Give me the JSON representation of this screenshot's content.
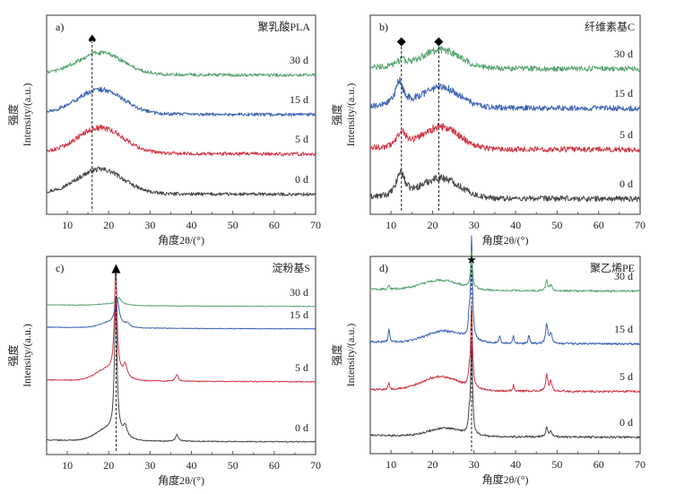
{
  "chart_data": [
    {
      "id": "a",
      "type": "line",
      "panel_label": "a)",
      "title": "聚乳酸PLA",
      "xlabel": "角度2θ/(°)",
      "ylabel_cn": "强度",
      "ylabel": "Intensity/(a.u.)",
      "xlim": [
        5,
        70
      ],
      "xticks": [
        10,
        20,
        30,
        40,
        50,
        60,
        70
      ],
      "marker": {
        "symbol": "♠",
        "positions": [
          16
        ]
      },
      "series": [
        {
          "name": "0 d",
          "color": "#474747",
          "baseline_rank": 0,
          "peaks": [
            {
              "x": 18,
              "h": 0.9,
              "w": 5.5,
              "type": "broad"
            }
          ],
          "noise": 0.12
        },
        {
          "name": "5 d",
          "color": "#d03848",
          "baseline_rank": 1,
          "peaks": [
            {
              "x": 18,
              "h": 0.95,
              "w": 5.5,
              "type": "broad"
            }
          ],
          "noise": 0.13
        },
        {
          "name": "15 d",
          "color": "#3d63b3",
          "baseline_rank": 2,
          "peaks": [
            {
              "x": 18,
              "h": 0.9,
              "w": 5.5,
              "type": "broad"
            }
          ],
          "noise": 0.12
        },
        {
          "name": "30 d",
          "color": "#5aa473",
          "baseline_rank": 3,
          "peaks": [
            {
              "x": 18,
              "h": 0.8,
              "w": 5.5,
              "type": "broad"
            }
          ],
          "noise": 0.12
        }
      ]
    },
    {
      "id": "b",
      "type": "line",
      "panel_label": "b)",
      "title": "纤维素基C",
      "xlabel": "角度2θ/(°)",
      "ylabel_cn": "强度",
      "ylabel": "Intensity/(a.u.)",
      "xlim": [
        5,
        70
      ],
      "xticks": [
        10,
        20,
        30,
        40,
        50,
        60,
        70
      ],
      "marker": {
        "symbol": "◆",
        "positions": [
          12.5,
          21.5
        ]
      },
      "series": [
        {
          "name": "0 d",
          "color": "#474747",
          "baseline_rank": 0,
          "peaks": [
            {
              "x": 12.3,
              "h": 0.8,
              "w": 1.2,
              "type": "sharp"
            },
            {
              "x": 22,
              "h": 0.65,
              "w": 4.5,
              "type": "broad"
            }
          ],
          "noise": 0.18
        },
        {
          "name": "5 d",
          "color": "#d03848",
          "baseline_rank": 1,
          "peaks": [
            {
              "x": 12.5,
              "h": 0.55,
              "w": 1.2,
              "type": "sharp"
            },
            {
              "x": 22,
              "h": 0.7,
              "w": 4.5,
              "type": "broad"
            }
          ],
          "noise": 0.18
        },
        {
          "name": "15 d",
          "color": "#3d63b3",
          "baseline_rank": 2,
          "peaks": [
            {
              "x": 12,
              "h": 0.8,
              "w": 1.2,
              "type": "sharp"
            },
            {
              "x": 22,
              "h": 0.65,
              "w": 4.5,
              "type": "broad"
            }
          ],
          "noise": 0.18
        },
        {
          "name": "30 d",
          "color": "#5aa473",
          "baseline_rank": 3,
          "peaks": [
            {
              "x": 12.5,
              "h": 0.2,
              "w": 1.5,
              "type": "sharp"
            },
            {
              "x": 22,
              "h": 0.6,
              "w": 4.5,
              "type": "broad"
            }
          ],
          "noise": 0.18
        }
      ]
    },
    {
      "id": "c",
      "type": "line",
      "panel_label": "c)",
      "title": "淀粉基S",
      "xlabel": "角度2θ/(°)",
      "ylabel_cn": "强度",
      "ylabel": "Intensity/(a.u.)",
      "xlim": [
        5,
        70
      ],
      "xticks": [
        10,
        20,
        30,
        40,
        50,
        60,
        70
      ],
      "marker": {
        "symbol": "▲",
        "positions": [
          21.8
        ]
      },
      "series": [
        {
          "name": "0 d",
          "color": "#474747",
          "baseline_rank": 0,
          "peaks": [
            {
              "x": 21.7,
              "h": 4.2,
              "w": 0.35,
              "type": "sharp"
            },
            {
              "x": 20,
              "h": 0.35,
              "w": 3,
              "type": "broad"
            },
            {
              "x": 24,
              "h": 0.3,
              "w": 0.5,
              "type": "sharp"
            },
            {
              "x": 36.5,
              "h": 0.2,
              "w": 0.4,
              "type": "sharp"
            }
          ],
          "noise": 0.03
        },
        {
          "name": "5 d",
          "color": "#d03848",
          "baseline_rank": 1,
          "peaks": [
            {
              "x": 21.7,
              "h": 3.3,
              "w": 0.35,
              "type": "sharp"
            },
            {
              "x": 20,
              "h": 0.35,
              "w": 3,
              "type": "broad"
            },
            {
              "x": 24,
              "h": 0.35,
              "w": 0.5,
              "type": "sharp"
            },
            {
              "x": 36.5,
              "h": 0.2,
              "w": 0.4,
              "type": "sharp"
            }
          ],
          "noise": 0.03
        },
        {
          "name": "15 d",
          "color": "#3d63b3",
          "baseline_rank": 2,
          "peaks": [
            {
              "x": 22,
              "h": 0.8,
              "w": 0.6,
              "type": "sharp"
            },
            {
              "x": 20.5,
              "h": 0.15,
              "w": 2.5,
              "type": "broad"
            },
            {
              "x": 24.5,
              "h": 0.1,
              "w": 0.6,
              "type": "sharp"
            }
          ],
          "noise": 0.02
        },
        {
          "name": "30 d",
          "color": "#5aa473",
          "baseline_rank": 3,
          "peaks": [
            {
              "x": 22.5,
              "h": 0.2,
              "w": 0.6,
              "type": "sharp"
            },
            {
              "x": 21,
              "h": 0.05,
              "w": 3,
              "type": "broad"
            }
          ],
          "noise": 0.02
        }
      ]
    },
    {
      "id": "d",
      "type": "line",
      "panel_label": "d)",
      "title": "聚乙烯PE",
      "xlabel": "角度2θ/(°)",
      "ylabel_cn": "强度",
      "ylabel": "Intensity/(a.u.)",
      "xlim": [
        5,
        70
      ],
      "xticks": [
        10,
        20,
        30,
        40,
        50,
        60,
        70
      ],
      "marker": {
        "symbol": "★",
        "positions": [
          29.4
        ]
      },
      "series": [
        {
          "name": "0 d",
          "color": "#474747",
          "baseline_rank": 0,
          "peaks": [
            {
              "x": 29.4,
              "h": 2.4,
              "w": 0.25,
              "type": "sharp"
            },
            {
              "x": 28.8,
              "h": 0.4,
              "w": 0.2,
              "type": "sharp"
            },
            {
              "x": 23,
              "h": 0.2,
              "w": 4,
              "type": "broad"
            },
            {
              "x": 47.5,
              "h": 0.25,
              "w": 0.3,
              "type": "sharp"
            },
            {
              "x": 48.5,
              "h": 0.15,
              "w": 0.3,
              "type": "sharp"
            }
          ],
          "noise": 0.05
        },
        {
          "name": "5 d",
          "color": "#d03848",
          "baseline_rank": 1,
          "peaks": [
            {
              "x": 29.4,
              "h": 2.1,
              "w": 0.25,
              "type": "sharp"
            },
            {
              "x": 28.8,
              "h": 0.3,
              "w": 0.2,
              "type": "sharp"
            },
            {
              "x": 22,
              "h": 0.35,
              "w": 4.5,
              "type": "broad"
            },
            {
              "x": 9.5,
              "h": 0.2,
              "w": 0.2,
              "type": "sharp"
            },
            {
              "x": 39.5,
              "h": 0.15,
              "w": 0.2,
              "type": "sharp"
            },
            {
              "x": 47.5,
              "h": 0.4,
              "w": 0.3,
              "type": "sharp"
            },
            {
              "x": 48.5,
              "h": 0.25,
              "w": 0.3,
              "type": "sharp"
            }
          ],
          "noise": 0.05
        },
        {
          "name": "15 d",
          "color": "#3d63b3",
          "baseline_rank": 2,
          "peaks": [
            {
              "x": 29.4,
              "h": 2.6,
              "w": 0.25,
              "type": "sharp"
            },
            {
              "x": 28.8,
              "h": 0.5,
              "w": 0.2,
              "type": "sharp"
            },
            {
              "x": 23,
              "h": 0.3,
              "w": 4.5,
              "type": "broad"
            },
            {
              "x": 9.5,
              "h": 0.35,
              "w": 0.2,
              "type": "sharp"
            },
            {
              "x": 36.2,
              "h": 0.2,
              "w": 0.2,
              "type": "sharp"
            },
            {
              "x": 39.5,
              "h": 0.2,
              "w": 0.2,
              "type": "sharp"
            },
            {
              "x": 43.2,
              "h": 0.2,
              "w": 0.2,
              "type": "sharp"
            },
            {
              "x": 47.5,
              "h": 0.5,
              "w": 0.3,
              "type": "sharp"
            },
            {
              "x": 48.5,
              "h": 0.25,
              "w": 0.3,
              "type": "sharp"
            }
          ],
          "noise": 0.05
        },
        {
          "name": "30 d",
          "color": "#5aa473",
          "baseline_rank": 3,
          "peaks": [
            {
              "x": 29.4,
              "h": 1.0,
              "w": 0.25,
              "type": "sharp"
            },
            {
              "x": 22,
              "h": 0.25,
              "w": 4.5,
              "type": "broad"
            },
            {
              "x": 9.5,
              "h": 0.1,
              "w": 0.2,
              "type": "sharp"
            },
            {
              "x": 47.5,
              "h": 0.25,
              "w": 0.3,
              "type": "sharp"
            },
            {
              "x": 48.5,
              "h": 0.15,
              "w": 0.3,
              "type": "sharp"
            }
          ],
          "noise": 0.05
        }
      ]
    }
  ]
}
